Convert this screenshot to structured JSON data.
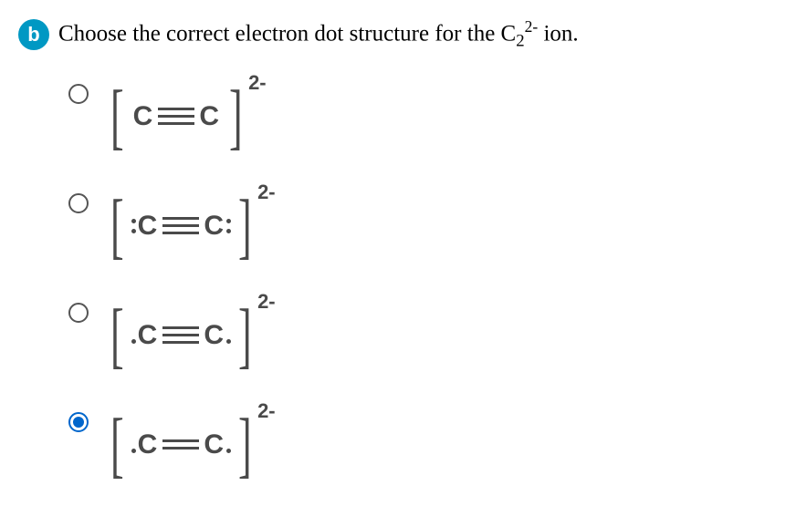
{
  "badge": {
    "letter": "b",
    "bg": "#0098c3",
    "fg": "#ffffff"
  },
  "prompt": {
    "pre": "Choose the correct electron dot structure for the ",
    "formula_base": "C",
    "formula_sub": "2",
    "formula_sup": "2-",
    "post": " ion."
  },
  "options": [
    {
      "selected": false,
      "left_lp": 0,
      "bond_lines": 3,
      "right_lp": 0,
      "charge": "2-"
    },
    {
      "selected": false,
      "left_lp": 2,
      "bond_lines": 3,
      "right_lp": 2,
      "charge": "2-"
    },
    {
      "selected": false,
      "left_lp": 1,
      "bond_lines": 3,
      "right_lp": 1,
      "charge": "2-"
    },
    {
      "selected": true,
      "left_lp": 1,
      "bond_lines": 2,
      "right_lp": 1,
      "charge": "2-"
    }
  ],
  "atom_symbol": "C",
  "colors": {
    "ink": "#4a4a4a",
    "selected": "#0066cc"
  }
}
